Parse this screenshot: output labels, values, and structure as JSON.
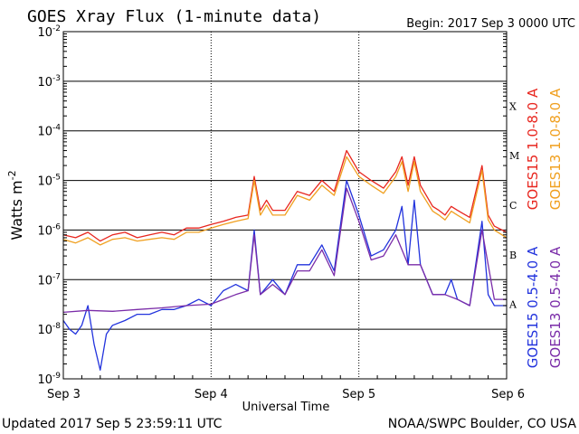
{
  "chart_data": {
    "type": "line",
    "title": "GOES Xray Flux (1-minute data)",
    "begin": "Begin:  2017 Sep 3 0000 UTC",
    "xlabel": "Universal Time",
    "ylabel": "Watts m",
    "ylabel_exp": "-2",
    "x_ticks": [
      "Sep 3",
      "Sep 4",
      "Sep 5",
      "Sep 6"
    ],
    "x_range_hours": [
      0,
      72
    ],
    "y_exponents": [
      -9,
      -8,
      -7,
      -6,
      -5,
      -4,
      -3,
      -2
    ],
    "y_base": "10",
    "ylim": [
      1e-09,
      0.01
    ],
    "flare_classes": [
      "A",
      "B",
      "C",
      "M",
      "X"
    ],
    "legend": [
      {
        "label": "GOES15 1.0-8.0 A",
        "color": "#e8261f"
      },
      {
        "label": "GOES13 1.0-8.0 A",
        "color": "#f0a020"
      },
      {
        "label": "GOES15 0.5-4.0 A",
        "color": "#2233dd"
      },
      {
        "label": "GOES13 0.5-4.0 A",
        "color": "#7a2ca8"
      }
    ],
    "series": [
      {
        "name": "GOES15 1.0-8.0 A",
        "color": "#e8261f",
        "x": [
          0,
          2,
          4,
          6,
          8,
          10,
          12,
          14,
          16,
          18,
          20,
          22,
          24,
          26,
          28,
          30,
          31,
          32,
          33,
          34,
          36,
          38,
          40,
          42,
          44,
          46,
          48,
          50,
          52,
          54,
          55,
          56,
          57,
          58,
          60,
          61,
          62,
          63,
          64,
          66,
          68,
          69,
          70,
          72
        ],
        "y": [
          8e-07,
          7e-07,
          9e-07,
          6e-07,
          8e-07,
          9e-07,
          7e-07,
          8e-07,
          9e-07,
          8e-07,
          1.1e-06,
          1.1e-06,
          1.3e-06,
          1.5e-06,
          1.8e-06,
          2e-06,
          1.2e-05,
          2.5e-06,
          4e-06,
          2.5e-06,
          2.5e-06,
          6e-06,
          5e-06,
          1e-05,
          6e-06,
          4e-05,
          1.5e-05,
          1e-05,
          7e-06,
          1.5e-05,
          3e-05,
          8e-06,
          3e-05,
          8e-06,
          3e-06,
          2.5e-06,
          2e-06,
          3e-06,
          2.5e-06,
          1.8e-06,
          2e-05,
          2e-06,
          1.2e-06,
          9e-07
        ]
      },
      {
        "name": "GOES13 1.0-8.0 A",
        "color": "#f0a020",
        "x": [
          0,
          2,
          4,
          6,
          8,
          10,
          12,
          14,
          16,
          18,
          20,
          22,
          24,
          26,
          28,
          30,
          31,
          32,
          33,
          34,
          36,
          38,
          40,
          42,
          44,
          46,
          48,
          50,
          52,
          54,
          55,
          56,
          57,
          58,
          60,
          61,
          62,
          63,
          64,
          66,
          68,
          69,
          70,
          72
        ],
        "y": [
          6.5e-07,
          5.5e-07,
          7e-07,
          5e-07,
          6.5e-07,
          7e-07,
          6e-07,
          6.5e-07,
          7e-07,
          6.5e-07,
          9e-07,
          9e-07,
          1.1e-06,
          1.3e-06,
          1.5e-06,
          1.7e-06,
          1e-05,
          2e-06,
          3.2e-06,
          2e-06,
          2e-06,
          5e-06,
          4e-06,
          8e-06,
          5e-06,
          3e-05,
          1.2e-05,
          8e-06,
          5.5e-06,
          1.2e-05,
          2.4e-05,
          6e-06,
          2.4e-05,
          6e-06,
          2.4e-06,
          2e-06,
          1.6e-06,
          2.4e-06,
          2e-06,
          1.4e-06,
          1.6e-05,
          1.6e-06,
          1e-06,
          7e-07
        ]
      },
      {
        "name": "GOES15 0.5-4.0 A",
        "color": "#2233dd",
        "x": [
          0,
          1,
          2,
          3,
          4,
          5,
          6,
          7,
          8,
          10,
          12,
          14,
          16,
          18,
          20,
          22,
          24,
          26,
          28,
          30,
          31,
          32,
          34,
          36,
          38,
          40,
          42,
          44,
          46,
          48,
          50,
          52,
          54,
          55,
          56,
          57,
          58,
          60,
          62,
          63,
          64,
          66,
          68,
          69,
          70,
          72
        ],
        "y": [
          1.5e-08,
          1e-08,
          8e-09,
          1.2e-08,
          3e-08,
          5e-09,
          1.5e-09,
          8e-09,
          1.2e-08,
          1.5e-08,
          2e-08,
          2e-08,
          2.5e-08,
          2.5e-08,
          3e-08,
          4e-08,
          3e-08,
          6e-08,
          8e-08,
          6e-08,
          1e-06,
          5e-08,
          1e-07,
          5e-08,
          2e-07,
          2e-07,
          5e-07,
          1.5e-07,
          1e-05,
          2e-06,
          3e-07,
          4e-07,
          1e-06,
          3e-06,
          2e-07,
          4e-06,
          2e-07,
          5e-08,
          5e-08,
          1e-07,
          4e-08,
          3e-08,
          1.5e-06,
          5e-08,
          3e-08,
          3e-08
        ]
      },
      {
        "name": "GOES13 0.5-4.0 A",
        "color": "#7a2ca8",
        "x": [
          0,
          4,
          8,
          12,
          16,
          20,
          24,
          26,
          28,
          30,
          31,
          32,
          34,
          36,
          38,
          40,
          42,
          44,
          46,
          48,
          50,
          52,
          54,
          56,
          58,
          60,
          62,
          64,
          66,
          68,
          70,
          72
        ],
        "y": [
          2.2e-08,
          2.4e-08,
          2.3e-08,
          2.5e-08,
          2.7e-08,
          3e-08,
          3.2e-08,
          4e-08,
          5e-08,
          6e-08,
          8e-07,
          5e-08,
          8e-08,
          5e-08,
          1.5e-07,
          1.5e-07,
          4e-07,
          1.2e-07,
          7e-06,
          1.5e-06,
          2.5e-07,
          3e-07,
          8e-07,
          2e-07,
          2e-07,
          5e-08,
          5e-08,
          4e-08,
          3e-08,
          1e-06,
          4e-08,
          4e-08
        ]
      }
    ]
  },
  "footer": {
    "updated": "Updated 2017 Sep  5 23:59:11 UTC",
    "credit": "NOAA/SWPC Boulder, CO USA"
  }
}
